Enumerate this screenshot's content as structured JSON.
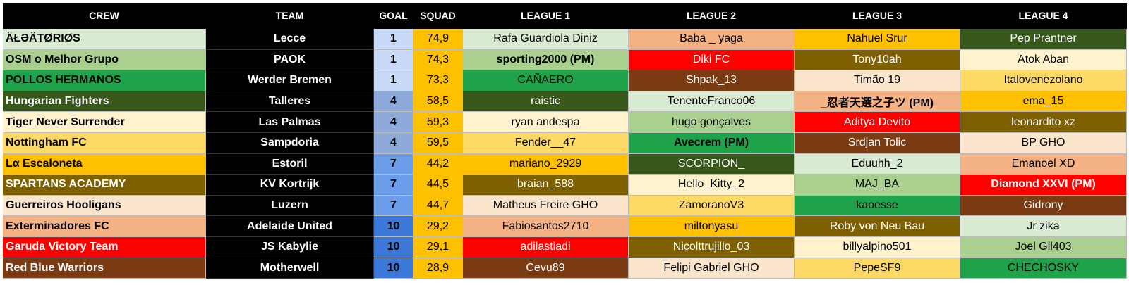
{
  "table": {
    "header": [
      "CREW",
      "TEAM",
      "GOAL",
      "SQUAD",
      "LEAGUE 1",
      "LEAGUE 2",
      "LEAGUE 3",
      "LEAGUE 4"
    ],
    "rows": [
      {
        "crew": "ÄŁƏÄTØRIØS",
        "team": "Lecce",
        "goal": 1,
        "squad": "74,9",
        "leagues": [
          "Rafa Guardiola Diniz",
          "Baba _ yaga",
          "Nahuel Srur",
          "Pep Prantner"
        ]
      },
      {
        "crew": "OSM o Melhor Grupo",
        "team": "PAOK",
        "goal": 1,
        "squad": "74,3",
        "leagues": [
          "sporting2000 (PM)",
          "Diki FC",
          "Tony10ah",
          "Atok Aban"
        ]
      },
      {
        "crew": "POLLOS HERMANOS",
        "team": "Werder Bremen",
        "goal": 1,
        "squad": "73,3",
        "leagues": [
          "CAÑAERO",
          "Shpak_13",
          "Timão 19",
          "Italovenezolano"
        ]
      },
      {
        "crew": "Hungarian Fighters",
        "team": "Talleres",
        "goal": 4,
        "squad": "58,5",
        "leagues": [
          "raistic",
          "TenenteFranco06",
          "_忍者天選之子ツ (PM)",
          "ema_15"
        ]
      },
      {
        "crew": "Tiger Never Surrender",
        "team": "Las Palmas",
        "goal": 4,
        "squad": "59,3",
        "leagues": [
          "ryan andespa",
          "hugo gonçalves",
          "Aditya Devito",
          "leonardito xz"
        ]
      },
      {
        "crew": "Nottingham FC",
        "team": "Sampdoria",
        "goal": 4,
        "squad": "59,5",
        "leagues": [
          "Fender__47",
          "Avecrem (PM)",
          "Srdjan Tolic",
          "BP GHO"
        ]
      },
      {
        "crew": "Lα Escaloneta",
        "team": "Estoril",
        "goal": 7,
        "squad": "44,2",
        "leagues": [
          "mariano_2929",
          "SCORPION_",
          "Eduuhh_2",
          "Emanoel XD"
        ]
      },
      {
        "crew": "SPARTANS ACADEMY",
        "team": "KV Kortrijk",
        "goal": 7,
        "squad": "44,5",
        "leagues": [
          "braian_588",
          "Hello_Kitty_2",
          "MAJ_BA",
          "Diamond XXVI (PM)"
        ]
      },
      {
        "crew": "Guerreiros Hooligans",
        "team": "Luzern",
        "goal": 7,
        "squad": "44,7",
        "leagues": [
          "Matheus Freire GHO",
          "ZamoranoV3",
          "kaoesse",
          "Gidrony"
        ]
      },
      {
        "crew": "Exterminadores FC",
        "team": "Adelaide United",
        "goal": 10,
        "squad": "29,2",
        "leagues": [
          "Fabiosantos2710",
          "miltonyasu",
          "Roby von Neu Bau",
          "Jr zika"
        ]
      },
      {
        "crew": "Garuda Victory Team",
        "team": "JS Kabylie",
        "goal": 10,
        "squad": "29,1",
        "leagues": [
          "adilastiadi",
          "Nicolttrujillo_03",
          "billyalpino501",
          "Joel Gil403"
        ]
      },
      {
        "crew": "Red Blue Warriors",
        "team": "Motherwell",
        "goal": 10,
        "squad": "28,9",
        "leagues": [
          "Cevu89",
          "Felipi Gabriel GHO",
          "PepeSF9",
          "CHECHOSKY"
        ]
      }
    ]
  }
}
